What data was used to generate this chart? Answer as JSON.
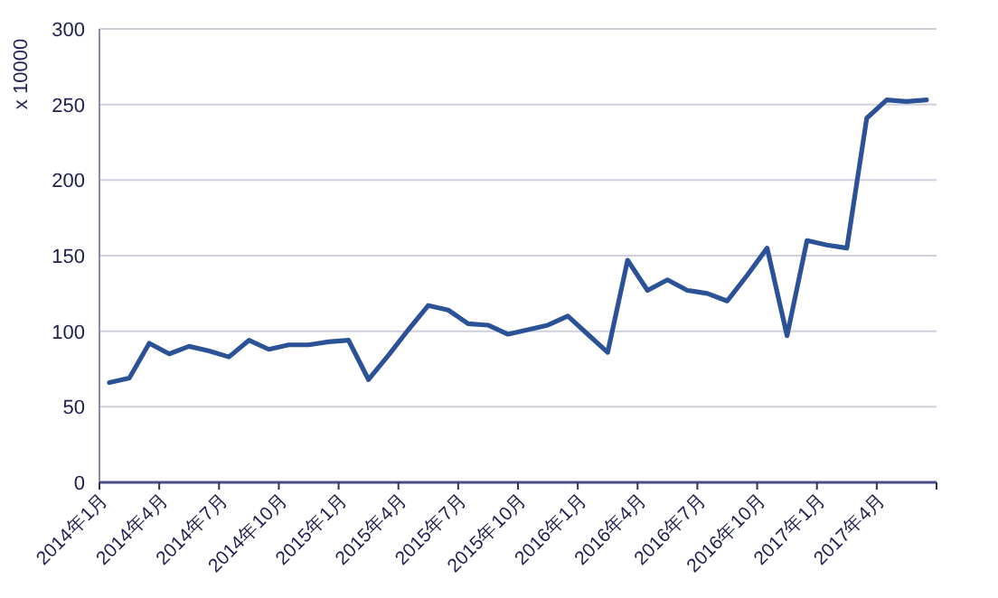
{
  "chart_data": {
    "type": "line",
    "ylabel": "x 10000",
    "categories": [
      "2014年1月",
      null,
      null,
      "2014年4月",
      null,
      null,
      "2014年7月",
      null,
      null,
      "2014年10月",
      null,
      null,
      "2015年1月",
      null,
      null,
      "2015年4月",
      null,
      null,
      "2015年7月",
      null,
      null,
      "2015年10月",
      null,
      null,
      "2016年1月",
      null,
      null,
      "2016年4月",
      null,
      null,
      "2016年7月",
      null,
      null,
      "2016年10月",
      null,
      null,
      "2017年1月",
      null,
      null,
      "2017年4月",
      null,
      null
    ],
    "series": [
      {
        "color": "#2b5296",
        "values": [
          66,
          69,
          92,
          85,
          90,
          87,
          83,
          94,
          88,
          91,
          91,
          93,
          94,
          68,
          84,
          101,
          117,
          114,
          105,
          104,
          98,
          101,
          104,
          110,
          98,
          86,
          147,
          127,
          134,
          127,
          125,
          120,
          137,
          155,
          97,
          160,
          157,
          155,
          241,
          253,
          252,
          253
        ]
      }
    ],
    "ylim": [
      0,
      300
    ],
    "yticks": [
      0,
      50,
      100,
      150,
      200,
      250,
      300
    ],
    "grid": "y"
  }
}
